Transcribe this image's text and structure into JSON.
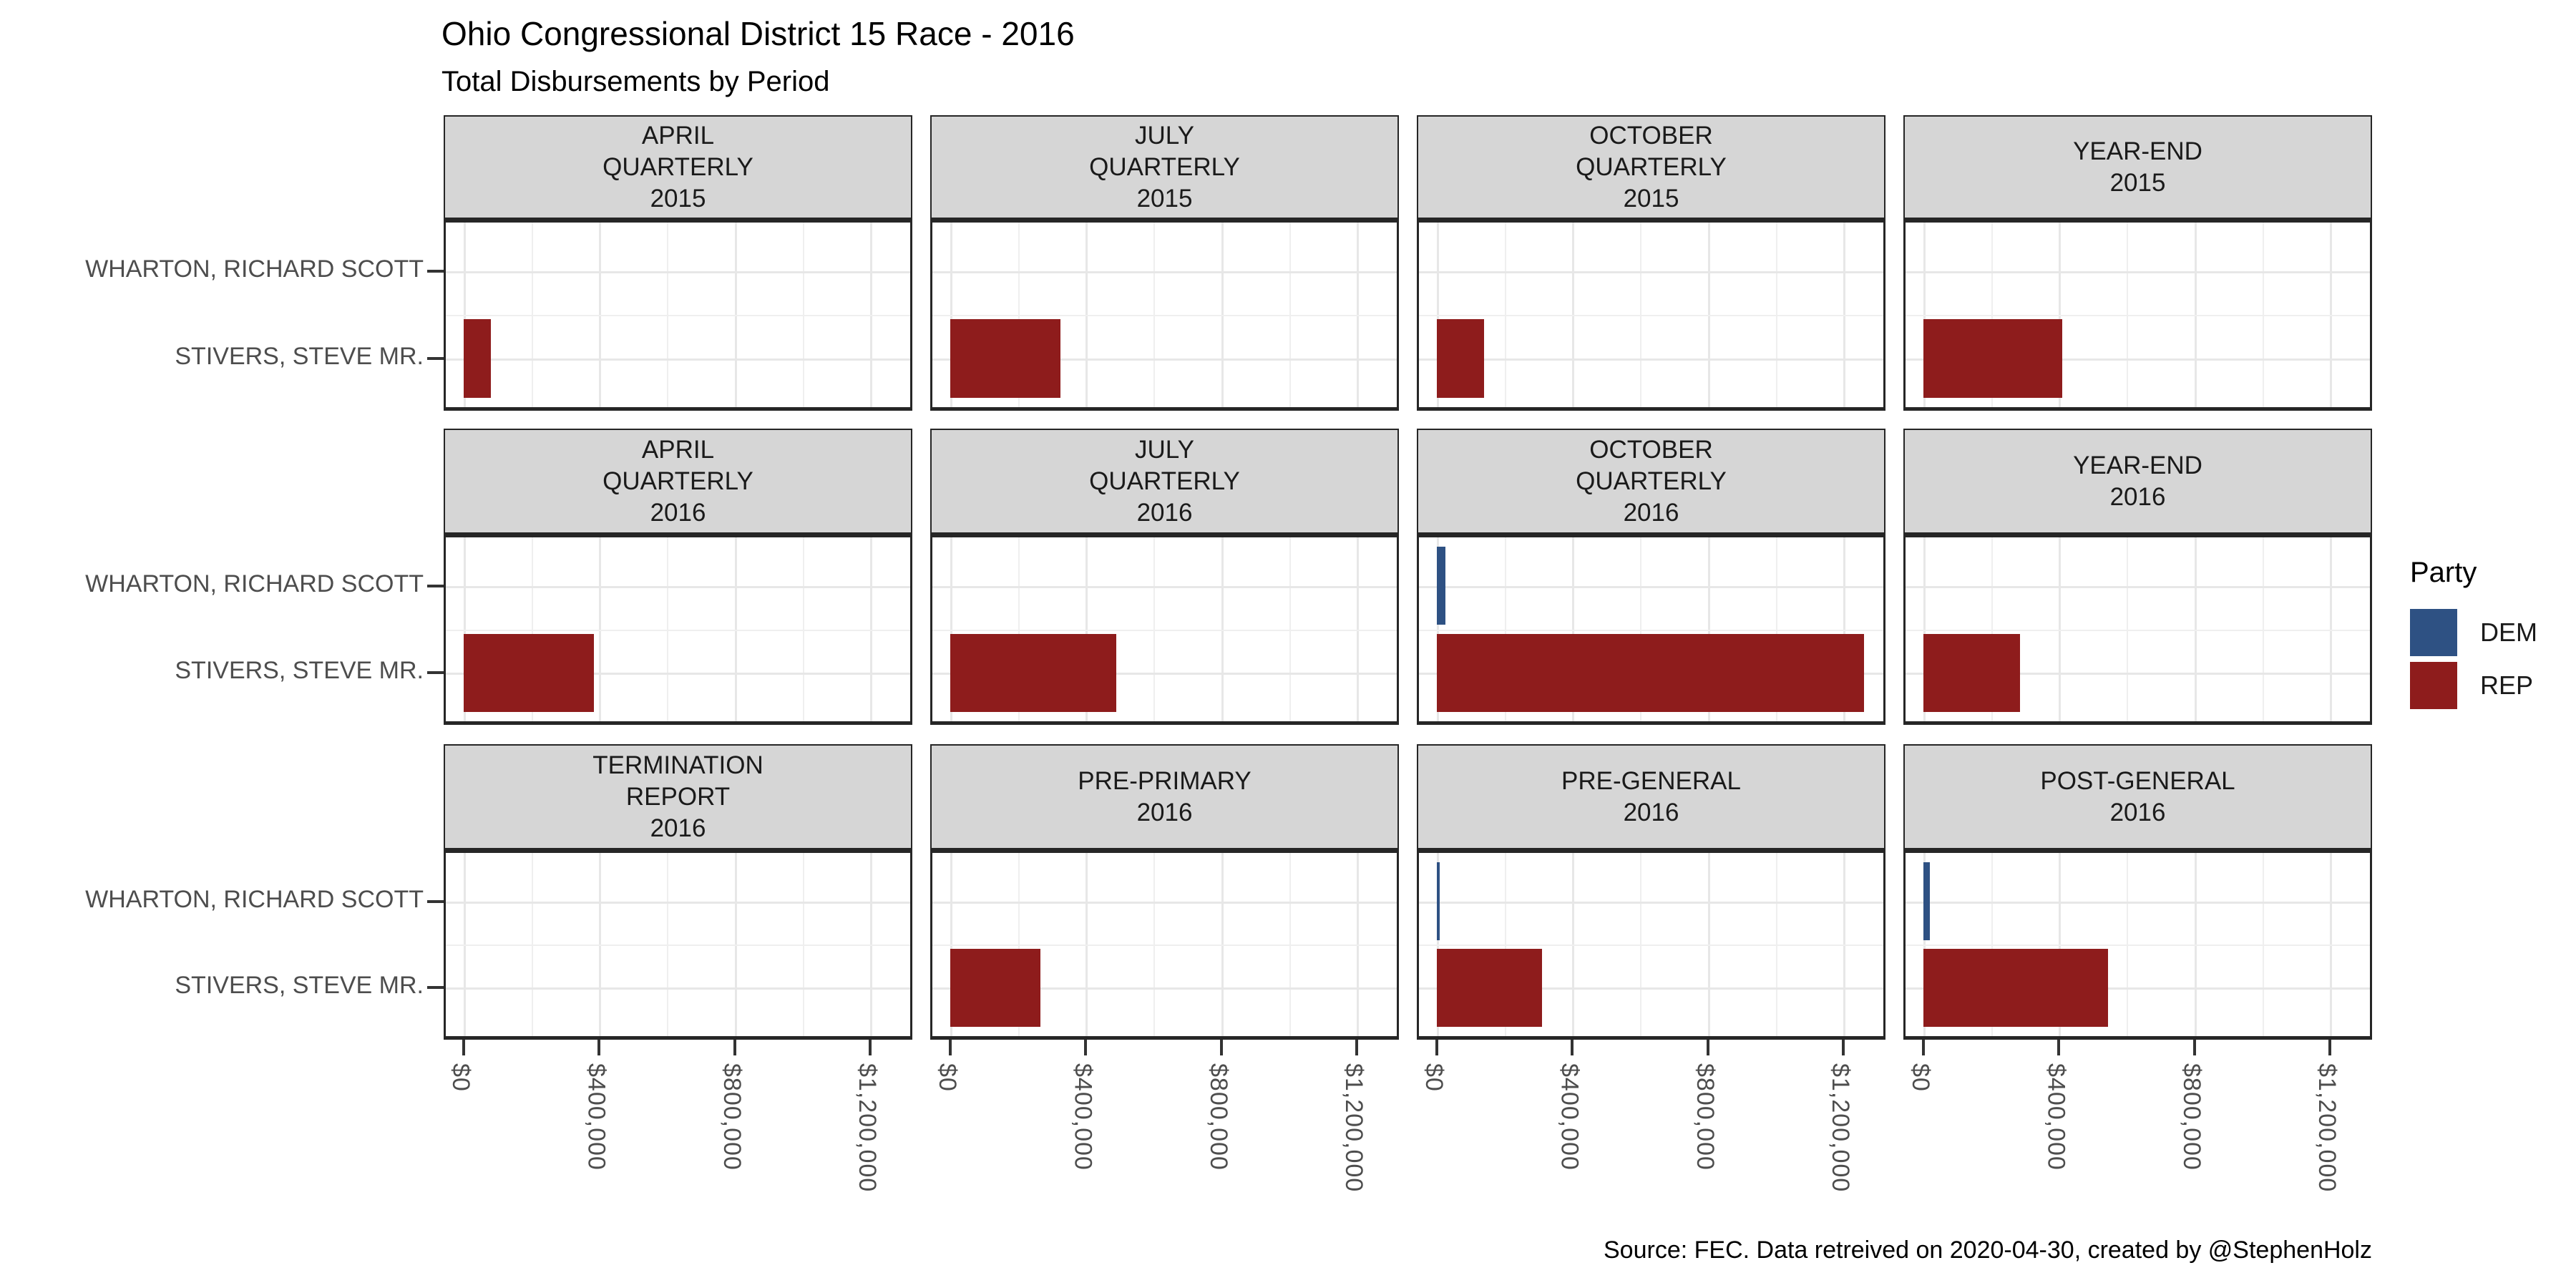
{
  "title": "Ohio Congressional District 15 Race - 2016",
  "subtitle": "Total Disbursements by Period",
  "caption": "Source: FEC. Data retreived on 2020-04-30, created by @StephenHolz",
  "legend": {
    "title": "Party",
    "entries": [
      {
        "label": "DEM",
        "color": "#2E5183"
      },
      {
        "label": "REP",
        "color": "#8E1C1C"
      }
    ]
  },
  "chart_data": {
    "type": "bar",
    "orientation": "horizontal",
    "title": "Ohio Congressional District 15 Race - 2016",
    "subtitle": "Total Disbursements by Period",
    "categories": [
      "WHARTON, RICHARD SCOTT",
      "STIVERS, STEVE MR."
    ],
    "party_colors": {
      "DEM": "#2E5183",
      "REP": "#8E1C1C"
    },
    "x_axis": {
      "unit": "USD",
      "tick_labels": [
        "$0",
        "$400,000",
        "$800,000",
        "$1,200,000"
      ],
      "tick_values": [
        0,
        400000,
        800000,
        1200000
      ],
      "minor_values": [
        200000,
        600000,
        1000000
      ],
      "range": [
        0,
        1382000
      ]
    },
    "facet_grid": {
      "rows": 3,
      "cols": 4
    },
    "facets": [
      {
        "label_lines": [
          "APRIL",
          "QUARTERLY",
          "2015"
        ],
        "bars": [
          {
            "candidate": "STIVERS, STEVE MR.",
            "party": "REP",
            "value": 80000
          }
        ]
      },
      {
        "label_lines": [
          "JULY",
          "QUARTERLY",
          "2015"
        ],
        "bars": [
          {
            "candidate": "STIVERS, STEVE MR.",
            "party": "REP",
            "value": 325000
          }
        ]
      },
      {
        "label_lines": [
          "OCTOBER",
          "QUARTERLY",
          "2015"
        ],
        "bars": [
          {
            "candidate": "STIVERS, STEVE MR.",
            "party": "REP",
            "value": 140000
          }
        ]
      },
      {
        "label_lines": [
          "YEAR-END",
          "2015"
        ],
        "bars": [
          {
            "candidate": "STIVERS, STEVE MR.",
            "party": "REP",
            "value": 410000
          }
        ]
      },
      {
        "label_lines": [
          "APRIL",
          "QUARTERLY",
          "2016"
        ],
        "bars": [
          {
            "candidate": "STIVERS, STEVE MR.",
            "party": "REP",
            "value": 385000
          }
        ]
      },
      {
        "label_lines": [
          "JULY",
          "QUARTERLY",
          "2016"
        ],
        "bars": [
          {
            "candidate": "STIVERS, STEVE MR.",
            "party": "REP",
            "value": 490000
          }
        ]
      },
      {
        "label_lines": [
          "OCTOBER",
          "QUARTERLY",
          "2016"
        ],
        "bars": [
          {
            "candidate": "WHARTON, RICHARD SCOTT",
            "party": "DEM",
            "value": 25000
          },
          {
            "candidate": "STIVERS, STEVE MR.",
            "party": "REP",
            "value": 1260000
          }
        ]
      },
      {
        "label_lines": [
          "YEAR-END",
          "2016"
        ],
        "bars": [
          {
            "candidate": "STIVERS, STEVE MR.",
            "party": "REP",
            "value": 285000
          }
        ]
      },
      {
        "label_lines": [
          "TERMINATION",
          "REPORT",
          "2016"
        ],
        "bars": []
      },
      {
        "label_lines": [
          "PRE-PRIMARY",
          "2016"
        ],
        "bars": [
          {
            "candidate": "STIVERS, STEVE MR.",
            "party": "REP",
            "value": 265000
          }
        ]
      },
      {
        "label_lines": [
          "PRE-GENERAL",
          "2016"
        ],
        "bars": [
          {
            "candidate": "WHARTON, RICHARD SCOTT",
            "party": "DEM",
            "value": 9000
          },
          {
            "candidate": "STIVERS, STEVE MR.",
            "party": "REP",
            "value": 310000
          }
        ]
      },
      {
        "label_lines": [
          "POST-GENERAL",
          "2016"
        ],
        "bars": [
          {
            "candidate": "WHARTON, RICHARD SCOTT",
            "party": "DEM",
            "value": 19000
          },
          {
            "candidate": "STIVERS, STEVE MR.",
            "party": "REP",
            "value": 545000
          }
        ]
      }
    ]
  }
}
